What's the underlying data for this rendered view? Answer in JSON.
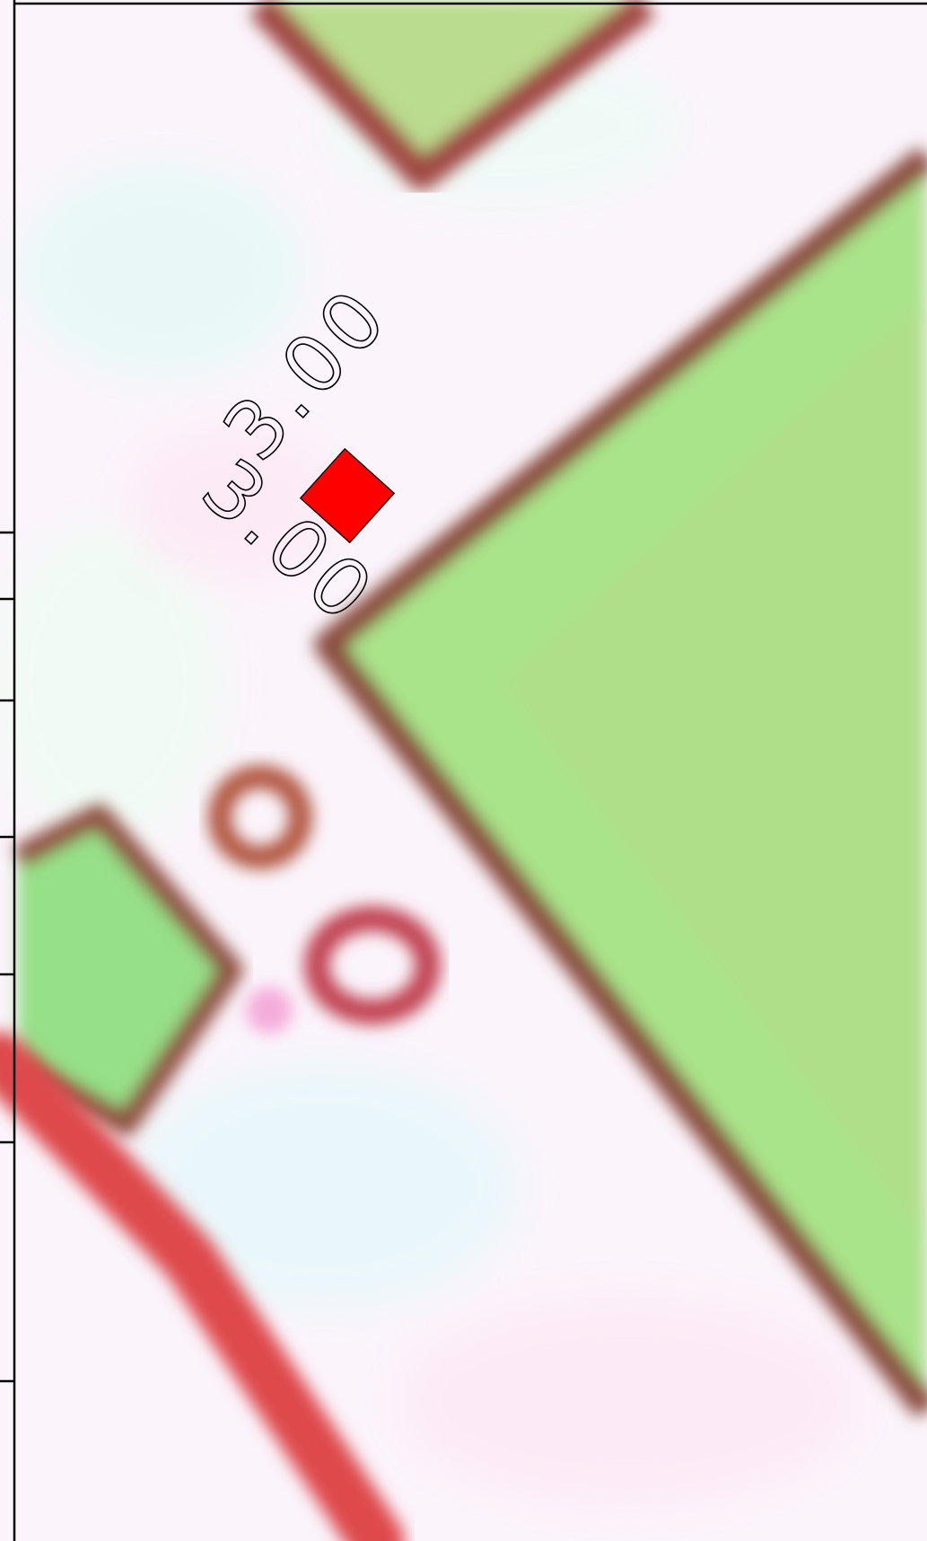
{
  "map": {
    "dimension_labels": [
      "3.00",
      "3.00"
    ],
    "marker": {
      "shape": "square",
      "color": "#ff0000",
      "name": "site-marker"
    },
    "colors": {
      "background": "#fbf4fb",
      "vegetation": "#a8e48c",
      "vegetation_dark": "#8fd880",
      "boundary": "#9a4a3e",
      "boundary_red": "#e0484a",
      "pale_cyan": "#e8faf8",
      "pale_pink": "#fde8f4"
    }
  }
}
